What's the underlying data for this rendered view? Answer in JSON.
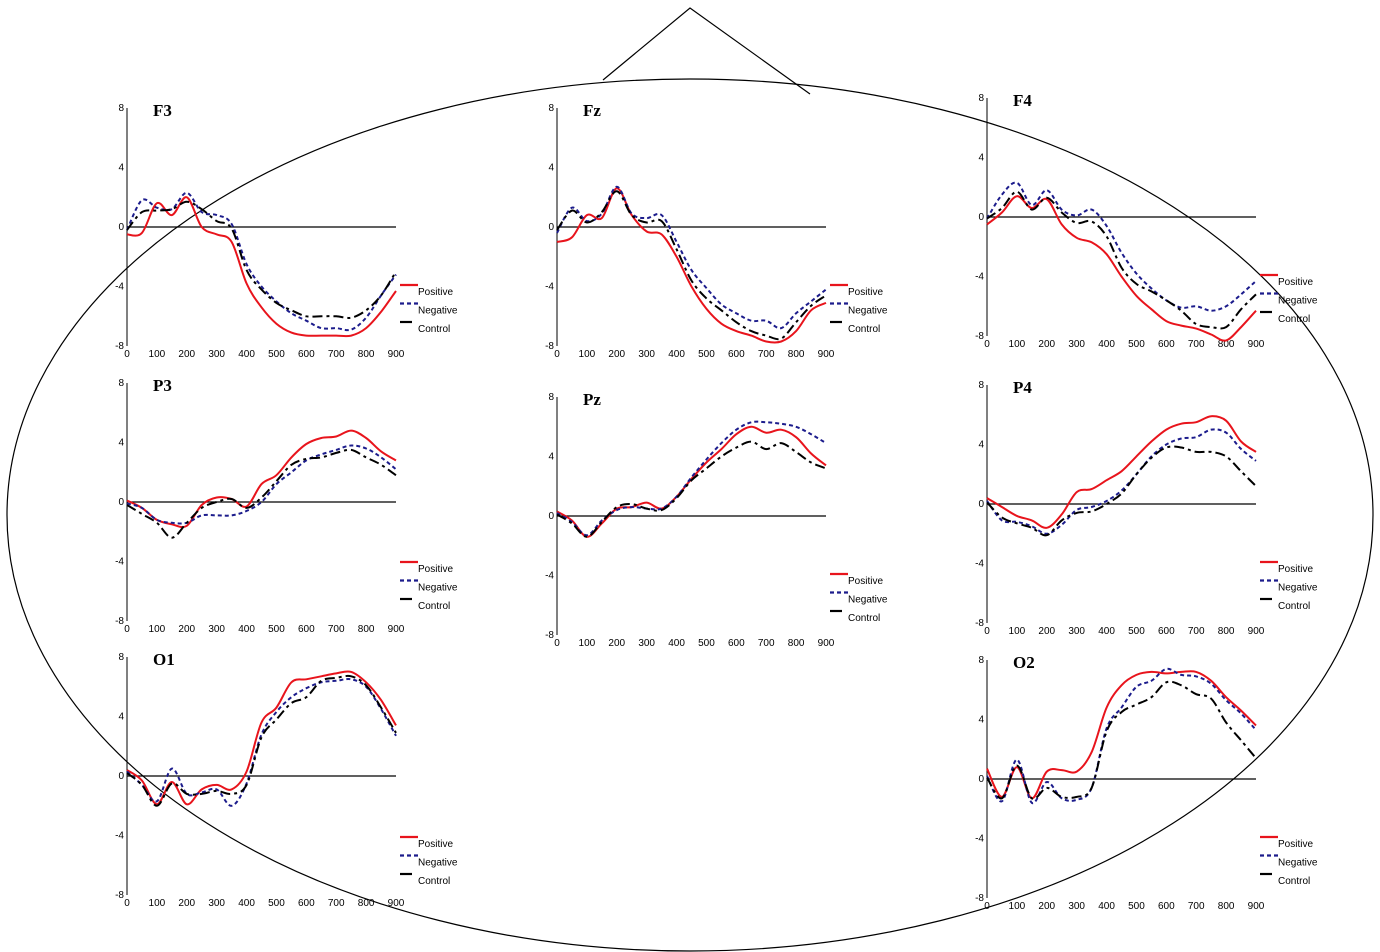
{
  "colors": {
    "positive": "#e8141c",
    "negative": "#1c1c8c",
    "control": "#000000"
  },
  "chart_data": [
    {
      "type": "line",
      "title": "F3",
      "xlim": [
        0,
        900
      ],
      "ylim": [
        -8,
        8
      ],
      "xticks": [
        "0",
        "100",
        "200",
        "300",
        "400",
        "500",
        "600",
        "700",
        "800",
        "900"
      ],
      "yticks": [
        "8",
        "4",
        "0",
        "-4",
        "-8"
      ],
      "legend": [
        "Positive",
        "Negative",
        "Control"
      ],
      "x": [
        0,
        50,
        100,
        150,
        200,
        250,
        300,
        350,
        400,
        450,
        500,
        550,
        600,
        650,
        700,
        750,
        800,
        850,
        900
      ],
      "series": [
        {
          "name": "Positive",
          "values": [
            -0.5,
            -0.4,
            1.6,
            0.8,
            2.0,
            0.0,
            -0.5,
            -1.0,
            -3.8,
            -5.4,
            -6.5,
            -7.1,
            -7.3,
            -7.3,
            -7.3,
            -7.3,
            -6.8,
            -5.7,
            -4.3
          ]
        },
        {
          "name": "Negative",
          "values": [
            -0.2,
            1.8,
            1.3,
            1.2,
            2.3,
            1.0,
            0.8,
            0.2,
            -2.5,
            -4.0,
            -5.0,
            -5.8,
            -6.3,
            -6.8,
            -6.8,
            -6.9,
            -6.1,
            -4.6,
            -3.2
          ]
        },
        {
          "name": "Control",
          "values": [
            -0.2,
            1.0,
            1.1,
            1.2,
            1.7,
            1.2,
            0.4,
            -0.1,
            -2.9,
            -4.2,
            -5.1,
            -5.6,
            -6.0,
            -6.0,
            -6.0,
            -6.1,
            -5.6,
            -4.6,
            -3.0
          ]
        }
      ]
    },
    {
      "type": "line",
      "title": "Fz",
      "xlim": [
        0,
        900
      ],
      "ylim": [
        -8,
        8
      ],
      "xticks": [
        "0",
        "100",
        "200",
        "300",
        "400",
        "500",
        "600",
        "700",
        "800",
        "900"
      ],
      "yticks": [
        "8",
        "4",
        "0",
        "-4",
        "-8"
      ],
      "legend": [
        "Positive",
        "Negative",
        "Control"
      ],
      "x": [
        0,
        50,
        100,
        150,
        200,
        250,
        300,
        350,
        400,
        450,
        500,
        550,
        600,
        650,
        700,
        750,
        800,
        850,
        900
      ],
      "series": [
        {
          "name": "Positive",
          "values": [
            -1.0,
            -0.7,
            0.8,
            0.6,
            2.6,
            0.8,
            -0.3,
            -0.5,
            -2.0,
            -4.0,
            -5.5,
            -6.5,
            -7.0,
            -7.3,
            -7.7,
            -7.7,
            -7.0,
            -5.6,
            -5.1
          ]
        },
        {
          "name": "Negative",
          "values": [
            -0.4,
            1.3,
            0.4,
            0.9,
            2.7,
            0.9,
            0.6,
            0.8,
            -1.0,
            -2.9,
            -4.1,
            -5.2,
            -5.8,
            -6.3,
            -6.3,
            -6.8,
            -5.8,
            -5.0,
            -4.2
          ]
        },
        {
          "name": "Control",
          "values": [
            -0.2,
            1.1,
            0.3,
            1.0,
            2.4,
            0.8,
            0.3,
            0.4,
            -1.5,
            -3.6,
            -4.8,
            -5.6,
            -6.4,
            -7.0,
            -7.3,
            -7.5,
            -6.4,
            -5.3,
            -4.6
          ]
        }
      ]
    },
    {
      "type": "line",
      "title": "F4",
      "xlim": [
        0,
        900
      ],
      "ylim": [
        -8,
        8
      ],
      "xticks": [
        "0",
        "100",
        "200",
        "300",
        "400",
        "500",
        "600",
        "700",
        "800",
        "900"
      ],
      "yticks": [
        "8",
        "4",
        "0",
        "-4",
        "-8"
      ],
      "legend": [
        "Positive",
        "Negative",
        "Control"
      ],
      "x": [
        0,
        50,
        100,
        150,
        200,
        250,
        300,
        350,
        400,
        450,
        500,
        550,
        600,
        650,
        700,
        750,
        800,
        850,
        900
      ],
      "series": [
        {
          "name": "Positive",
          "values": [
            -0.5,
            0.3,
            1.4,
            0.6,
            1.2,
            -0.5,
            -1.4,
            -1.7,
            -2.5,
            -4.0,
            -5.3,
            -6.2,
            -7.0,
            -7.3,
            -7.5,
            -7.9,
            -8.3,
            -7.4,
            -6.3
          ]
        },
        {
          "name": "Negative",
          "values": [
            -0.1,
            1.5,
            2.3,
            0.8,
            1.8,
            0.5,
            0.1,
            0.5,
            -0.6,
            -2.4,
            -3.8,
            -4.8,
            -5.6,
            -6.1,
            -6.0,
            -6.3,
            -6.0,
            -5.2,
            -4.3
          ]
        },
        {
          "name": "Control",
          "values": [
            -0.1,
            0.6,
            1.7,
            0.5,
            1.3,
            0.3,
            -0.4,
            -0.3,
            -1.3,
            -3.4,
            -4.5,
            -5.0,
            -5.6,
            -6.3,
            -7.2,
            -7.4,
            -7.4,
            -6.2,
            -5.2
          ]
        }
      ]
    },
    {
      "type": "line",
      "title": "P3",
      "xlim": [
        0,
        900
      ],
      "ylim": [
        -8,
        8
      ],
      "xticks": [
        "0",
        "100",
        "200",
        "300",
        "400",
        "500",
        "600",
        "700",
        "800",
        "900"
      ],
      "yticks": [
        "8",
        "4",
        "0",
        "-4",
        "-8"
      ],
      "legend": [
        "Positive",
        "Negative",
        "Control"
      ],
      "x": [
        0,
        50,
        100,
        150,
        200,
        250,
        300,
        350,
        400,
        450,
        500,
        550,
        600,
        650,
        700,
        750,
        800,
        850,
        900
      ],
      "series": [
        {
          "name": "Positive",
          "values": [
            0.1,
            -0.4,
            -1.2,
            -1.5,
            -1.6,
            -0.2,
            0.3,
            0.2,
            -0.3,
            1.2,
            1.8,
            3.0,
            3.9,
            4.3,
            4.4,
            4.8,
            4.3,
            3.4,
            2.8
          ]
        },
        {
          "name": "Negative",
          "values": [
            -0.1,
            -0.4,
            -1.2,
            -1.4,
            -1.4,
            -0.9,
            -0.9,
            -0.9,
            -0.6,
            0.0,
            1.2,
            2.0,
            2.8,
            3.2,
            3.5,
            3.8,
            3.6,
            3.0,
            2.2
          ]
        },
        {
          "name": "Control",
          "values": [
            -0.2,
            -0.8,
            -1.4,
            -2.4,
            -1.4,
            -0.4,
            0.0,
            0.2,
            -0.4,
            0.3,
            1.4,
            2.5,
            2.9,
            3.0,
            3.3,
            3.5,
            3.0,
            2.5,
            1.8
          ]
        }
      ]
    },
    {
      "type": "line",
      "title": "Pz",
      "xlim": [
        0,
        900
      ],
      "ylim": [
        -8,
        8
      ],
      "xticks": [
        "0",
        "100",
        "200",
        "300",
        "400",
        "500",
        "600",
        "700",
        "800",
        "900"
      ],
      "yticks": [
        "8",
        "4",
        "0",
        "-4",
        "-8"
      ],
      "legend": [
        "Positive",
        "Negative",
        "Control"
      ],
      "x": [
        0,
        50,
        100,
        150,
        200,
        250,
        300,
        350,
        400,
        450,
        500,
        550,
        600,
        650,
        700,
        750,
        800,
        850,
        900
      ],
      "series": [
        {
          "name": "Positive",
          "values": [
            0.3,
            -0.3,
            -1.4,
            -0.5,
            0.5,
            0.6,
            0.9,
            0.5,
            1.3,
            2.5,
            3.6,
            4.5,
            5.5,
            6.0,
            5.6,
            5.8,
            5.3,
            4.2,
            3.4
          ]
        },
        {
          "name": "Negative",
          "values": [
            0.2,
            -0.4,
            -1.3,
            -0.3,
            0.4,
            0.6,
            0.5,
            0.5,
            1.3,
            2.6,
            3.8,
            4.9,
            5.8,
            6.3,
            6.3,
            6.2,
            6.0,
            5.5,
            4.9
          ]
        },
        {
          "name": "Control",
          "values": [
            0.1,
            -0.5,
            -1.4,
            -0.4,
            0.6,
            0.8,
            0.5,
            0.4,
            1.2,
            2.4,
            3.2,
            4.0,
            4.6,
            5.0,
            4.5,
            4.9,
            4.3,
            3.6,
            3.2
          ]
        }
      ]
    },
    {
      "type": "line",
      "title": "P4",
      "xlim": [
        0,
        900
      ],
      "ylim": [
        -8,
        8
      ],
      "xticks": [
        "0",
        "100",
        "200",
        "300",
        "400",
        "500",
        "600",
        "700",
        "800",
        "900"
      ],
      "yticks": [
        "8",
        "4",
        "0",
        "-4",
        "-8"
      ],
      "legend": [
        "Positive",
        "Negative",
        "Control"
      ],
      "x": [
        0,
        50,
        100,
        150,
        200,
        250,
        300,
        350,
        400,
        450,
        500,
        550,
        600,
        650,
        700,
        750,
        800,
        850,
        900
      ],
      "series": [
        {
          "name": "Positive",
          "values": [
            0.4,
            -0.2,
            -0.8,
            -1.1,
            -1.6,
            -0.7,
            0.8,
            1.0,
            1.6,
            2.2,
            3.2,
            4.2,
            5.0,
            5.4,
            5.5,
            5.9,
            5.6,
            4.2,
            3.5
          ]
        },
        {
          "name": "Negative",
          "values": [
            0.2,
            -1.1,
            -1.2,
            -1.5,
            -2.0,
            -1.4,
            -0.4,
            -0.2,
            0.2,
            0.9,
            2.0,
            3.2,
            4.0,
            4.4,
            4.5,
            5.0,
            4.8,
            3.7,
            2.9
          ]
        },
        {
          "name": "Control",
          "values": [
            0.1,
            -0.9,
            -1.3,
            -1.6,
            -2.1,
            -1.1,
            -0.6,
            -0.5,
            0.0,
            0.7,
            2.0,
            3.1,
            3.8,
            3.8,
            3.5,
            3.5,
            3.2,
            2.2,
            1.2
          ]
        }
      ]
    },
    {
      "type": "line",
      "title": "O1",
      "xlim": [
        0,
        900
      ],
      "ylim": [
        -8,
        8
      ],
      "xticks": [
        "0",
        "100",
        "200",
        "300",
        "400",
        "500",
        "600",
        "700",
        "800",
        "900"
      ],
      "yticks": [
        "8",
        "4",
        "0",
        "-4",
        "-8"
      ],
      "legend": [
        "Positive",
        "Negative",
        "Control"
      ],
      "x": [
        0,
        50,
        100,
        150,
        200,
        250,
        300,
        350,
        400,
        450,
        500,
        550,
        600,
        650,
        700,
        750,
        800,
        850,
        900
      ],
      "series": [
        {
          "name": "Positive",
          "values": [
            0.4,
            -0.3,
            -1.9,
            -0.4,
            -1.9,
            -0.9,
            -0.6,
            -0.9,
            0.3,
            3.6,
            4.6,
            6.3,
            6.5,
            6.7,
            6.9,
            7.0,
            6.3,
            5.1,
            3.4
          ]
        },
        {
          "name": "Negative",
          "values": [
            0.3,
            -0.6,
            -1.7,
            0.5,
            -1.2,
            -1.1,
            -0.9,
            -2.0,
            -0.5,
            2.8,
            4.3,
            5.3,
            5.9,
            6.3,
            6.4,
            6.5,
            6.0,
            4.5,
            2.7
          ]
        },
        {
          "name": "Control",
          "values": [
            0.2,
            -0.6,
            -2.0,
            -0.5,
            -1.2,
            -1.2,
            -1.0,
            -1.2,
            -0.6,
            2.6,
            3.8,
            4.9,
            5.3,
            6.4,
            6.6,
            6.7,
            6.1,
            4.6,
            2.9
          ]
        }
      ]
    },
    {
      "type": "line",
      "title": "O2",
      "xlim": [
        0,
        900
      ],
      "ylim": [
        -8,
        8
      ],
      "xticks": [
        "0",
        "100",
        "200",
        "300",
        "400",
        "500",
        "600",
        "700",
        "800",
        "900"
      ],
      "yticks": [
        "8",
        "4",
        "0",
        "-4",
        "-8"
      ],
      "legend": [
        "Positive",
        "Negative",
        "Control"
      ],
      "x": [
        0,
        50,
        100,
        150,
        200,
        250,
        300,
        350,
        400,
        450,
        500,
        550,
        600,
        650,
        700,
        750,
        800,
        850,
        900
      ],
      "series": [
        {
          "name": "Positive",
          "values": [
            0.7,
            -1.2,
            0.8,
            -1.3,
            0.5,
            0.6,
            0.5,
            1.8,
            4.8,
            6.3,
            7.0,
            7.2,
            7.1,
            7.2,
            7.2,
            6.6,
            5.5,
            4.6,
            3.6
          ]
        },
        {
          "name": "Negative",
          "values": [
            0.2,
            -1.5,
            1.3,
            -1.6,
            -0.2,
            -1.3,
            -1.4,
            -0.6,
            3.4,
            4.8,
            6.2,
            6.6,
            7.4,
            7.0,
            6.9,
            6.4,
            5.3,
            4.4,
            3.3
          ]
        },
        {
          "name": "Control",
          "values": [
            0.1,
            -1.3,
            0.9,
            -1.3,
            -0.6,
            -1.2,
            -1.2,
            -0.6,
            3.2,
            4.5,
            5.0,
            5.5,
            6.5,
            6.3,
            5.7,
            5.4,
            3.8,
            2.6,
            1.4
          ]
        }
      ]
    }
  ]
}
